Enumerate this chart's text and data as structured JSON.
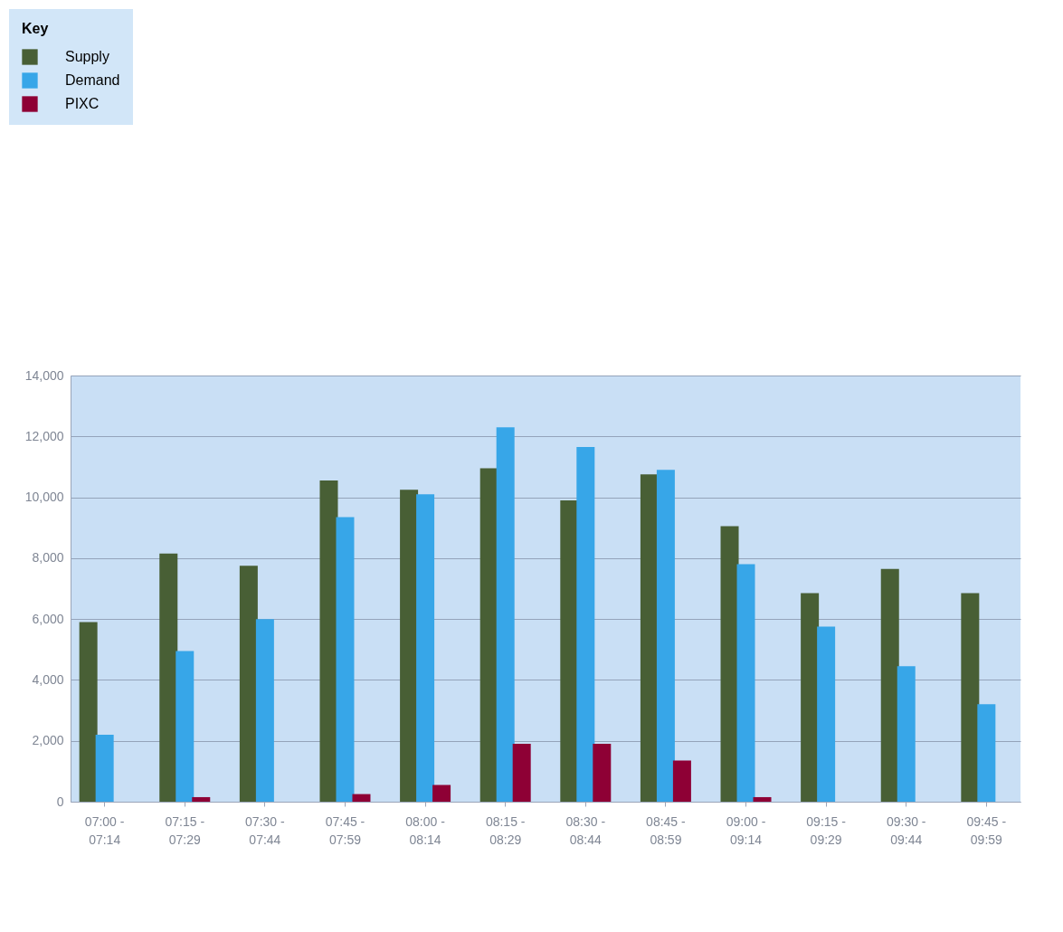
{
  "chart_data": {
    "type": "bar",
    "legend_title": "Key",
    "legend": "top left",
    "grid": "y",
    "categories": [
      "07:00 - 07:14",
      "07:15 - 07:29",
      "07:30 - 07:44",
      "07:45 - 07:59",
      "08:00 - 08:14",
      "08:15 - 08:29",
      "08:30 - 08:44",
      "08:45 - 08:59",
      "09:00 - 09:14",
      "09:15 - 09:29",
      "09:30 - 09:44",
      "09:45 - 09:59"
    ],
    "series": [
      {
        "name": "Supply",
        "color": "#485f35",
        "values": [
          5900,
          8150,
          7750,
          10550,
          10250,
          10950,
          9900,
          10750,
          9050,
          6850,
          7650,
          6850
        ]
      },
      {
        "name": "Demand",
        "color": "#37a6e8",
        "values": [
          2200,
          4950,
          6000,
          9350,
          10100,
          12300,
          11650,
          10900,
          7800,
          5750,
          4450,
          3200
        ]
      },
      {
        "name": "PIXC",
        "color": "#8e0035",
        "values": [
          0,
          150,
          0,
          250,
          550,
          1900,
          1900,
          1350,
          150,
          0,
          0,
          0
        ]
      }
    ],
    "ylim": [
      0,
      14000
    ],
    "yticks": [
      0,
      {
        "value": 2000,
        "label": "2,000"
      },
      {
        "value": 4000,
        "label": "4,000"
      },
      {
        "value": 6000,
        "label": "6,000"
      },
      {
        "value": 8000,
        "label": "8,000"
      },
      {
        "value": 10000,
        "label": "10,000"
      },
      {
        "value": 12000,
        "label": "12,000"
      },
      {
        "value": 14000,
        "label": "14,000"
      }
    ]
  }
}
